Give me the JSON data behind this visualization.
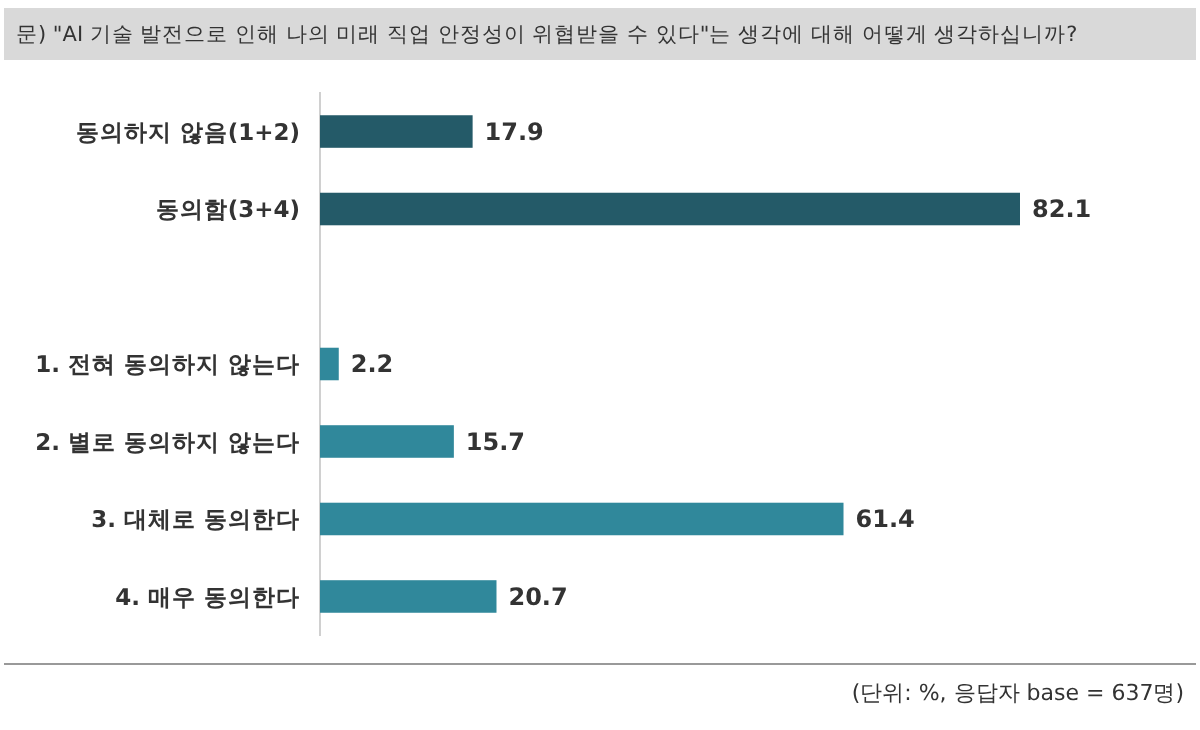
{
  "chart_data": {
    "type": "bar",
    "orientation": "horizontal",
    "title": "문) \"AI 기술 발전으로 인해 나의 미래 직업 안정성이 위협받을 수 있다\"는 생각에 대해 어떻게 생각하십니까?",
    "categories": [
      "동의하지 않음(1+2)",
      "동의함(3+4)",
      null,
      "1. 전혀 동의하지 않는다",
      "2. 별로 동의하지 않는다",
      "3. 대체로 동의한다",
      "4. 매우 동의한다"
    ],
    "values": [
      17.9,
      82.1,
      null,
      2.2,
      15.7,
      61.4,
      20.7
    ],
    "colors": [
      "#245a68",
      "#245a68",
      null,
      "#30889b",
      "#30889b",
      "#30889b",
      "#30889b"
    ],
    "data_labels": true,
    "annotations": [
      "(단위: %, 응답자 base = 637명)"
    ]
  }
}
